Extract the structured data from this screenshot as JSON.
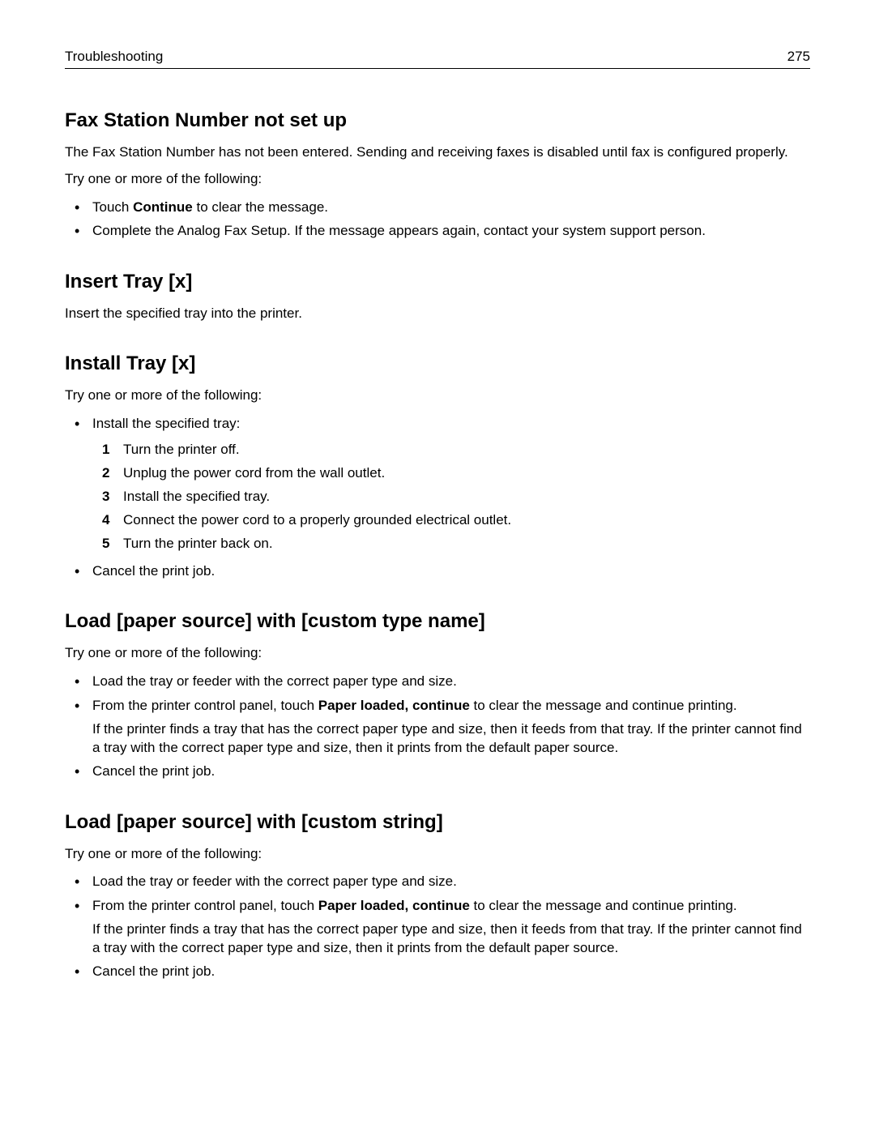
{
  "header": {
    "chapter": "Troubleshooting",
    "page_number": "275"
  },
  "sections": {
    "fax_station": {
      "title": "Fax Station Number not set up",
      "intro": "The Fax Station Number has not been entered. Sending and receiving faxes is disabled until fax is configured properly.",
      "try_line": "Try one or more of the following:",
      "bullet1_pre": "Touch ",
      "bullet1_bold": "Continue",
      "bullet1_post": " to clear the message.",
      "bullet2": "Complete the Analog Fax Setup. If the message appears again, contact your system support person."
    },
    "insert_tray": {
      "title": "Insert Tray [x]",
      "body": "Insert the specified tray into the printer."
    },
    "install_tray": {
      "title": "Install Tray [x]",
      "try_line": "Try one or more of the following:",
      "bullet1": "Install the specified tray:",
      "step1": "Turn the printer off.",
      "step2": "Unplug the power cord from the wall outlet.",
      "step3": "Install the specified tray.",
      "step4": "Connect the power cord to a properly grounded electrical outlet.",
      "step5": "Turn the printer back on.",
      "bullet2": "Cancel the print job."
    },
    "load_custom_type": {
      "title": "Load [paper source] with [custom type name]",
      "try_line": "Try one or more of the following:",
      "bullet1": "Load the tray or feeder with the correct paper type and size.",
      "bullet2_pre": "From the printer control panel, touch ",
      "bullet2_bold": "Paper loaded, continue",
      "bullet2_post": " to clear the message and continue printing.",
      "bullet2_sub": "If the printer finds a tray that has the correct paper type and size, then it feeds from that tray. If the printer cannot find a tray with the correct paper type and size, then it prints from the default paper source.",
      "bullet3": "Cancel the print job."
    },
    "load_custom_string": {
      "title": "Load [paper source] with [custom string]",
      "try_line": "Try one or more of the following:",
      "bullet1": "Load the tray or feeder with the correct paper type and size.",
      "bullet2_pre": "From the printer control panel, touch ",
      "bullet2_bold": "Paper loaded, continue",
      "bullet2_post": " to clear the message and continue printing.",
      "bullet2_sub": "If the printer finds a tray that has the correct paper type and size, then it feeds from that tray. If the printer cannot find a tray with the correct paper type and size, then it prints from the default paper source.",
      "bullet3": "Cancel the print job."
    }
  }
}
